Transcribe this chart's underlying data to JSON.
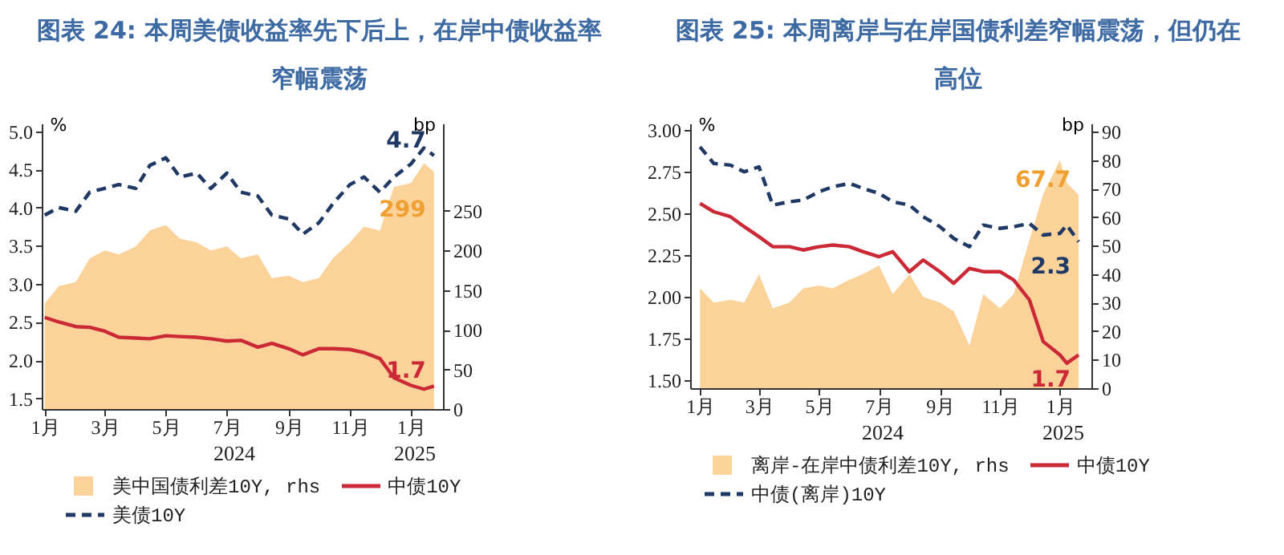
{
  "chart_data": [
    {
      "type": "line",
      "title": "图表 24: 本周美债收益率先下后上，在岸中债收益率窄幅震荡",
      "ylabel": "%",
      "y2label": "bp",
      "legend": "bottom",
      "x": [
        "2024-01-01",
        "2024-01-15",
        "2024-02-01",
        "2024-02-15",
        "2024-03-01",
        "2024-03-15",
        "2024-04-01",
        "2024-04-15",
        "2024-05-01",
        "2024-05-15",
        "2024-06-01",
        "2024-06-15",
        "2024-07-01",
        "2024-07-15",
        "2024-08-01",
        "2024-08-15",
        "2024-09-01",
        "2024-09-15",
        "2024-10-01",
        "2024-10-15",
        "2024-11-01",
        "2024-11-15",
        "2024-12-01",
        "2024-12-15",
        "2025-01-01",
        "2025-01-14",
        "2025-01-24"
      ],
      "xlim": [
        "2023-12-29",
        "2025-02-02"
      ],
      "xticks": [
        {
          "value": "2024-01-01",
          "label": "1月"
        },
        {
          "value": "2024-03-01",
          "label": "3月"
        },
        {
          "value": "2024-05-01",
          "label": "5月"
        },
        {
          "value": "2024-07-01",
          "label": "7月"
        },
        {
          "value": "2024-09-01",
          "label": "9月"
        },
        {
          "value": "2024-11-01",
          "label": "11月"
        },
        {
          "value": "2025-01-01",
          "label": "1月"
        }
      ],
      "annotations": [
        "2024",
        "2025"
      ],
      "ylim": [
        1.36,
        5.1
      ],
      "yticks": [
        {
          "value": 1.5,
          "label": "1.5"
        },
        {
          "value": 2,
          "label": "2.0"
        },
        {
          "value": 2.5,
          "label": "2.5"
        },
        {
          "value": 3,
          "label": "3.0"
        },
        {
          "value": 3.5,
          "label": "3.5"
        },
        {
          "value": 4,
          "label": "4.0"
        },
        {
          "value": 4.5,
          "label": "4.5"
        },
        {
          "value": 5,
          "label": "5.0"
        }
      ],
      "y2lim": [
        0,
        360
      ],
      "y2ticks": [
        0,
        50,
        100,
        150,
        200,
        250
      ],
      "series": [
        {
          "name": "美中国债利差10Y, rhs",
          "type": "area",
          "axis": "y2",
          "color": "#fad29a",
          "values": [
            133,
            155,
            160,
            190,
            200,
            195,
            205,
            225,
            232,
            215,
            210,
            200,
            205,
            190,
            195,
            165,
            168,
            160,
            165,
            190,
            210,
            230,
            225,
            280,
            285,
            310,
            299
          ],
          "value_labels": [
            null,
            null,
            null,
            null,
            null,
            null,
            null,
            null,
            null,
            null,
            null,
            null,
            null,
            null,
            null,
            null,
            null,
            null,
            null,
            null,
            null,
            null,
            null,
            null,
            null,
            null,
            "299"
          ]
        },
        {
          "name": "中债10Y",
          "color": "#cc2936",
          "line_style": "solid",
          "values": [
            2.56,
            2.5,
            2.44,
            2.43,
            2.38,
            2.3,
            2.29,
            2.28,
            2.32,
            2.31,
            2.3,
            2.28,
            2.25,
            2.26,
            2.17,
            2.22,
            2.15,
            2.07,
            2.15,
            2.15,
            2.14,
            2.1,
            2.02,
            1.77,
            1.67,
            1.62,
            1.66
          ],
          "value_labels": [
            null,
            null,
            null,
            null,
            null,
            null,
            null,
            null,
            null,
            null,
            null,
            null,
            null,
            null,
            null,
            null,
            null,
            null,
            null,
            null,
            null,
            null,
            null,
            null,
            null,
            null,
            "1.7"
          ]
        },
        {
          "name": "美债10Y",
          "color": "#1f3864",
          "line_style": "dashed",
          "values": [
            3.9,
            4.0,
            3.95,
            4.2,
            4.25,
            4.3,
            4.25,
            4.55,
            4.65,
            4.4,
            4.45,
            4.25,
            4.45,
            4.2,
            4.15,
            3.9,
            3.85,
            3.65,
            3.8,
            4.05,
            4.3,
            4.4,
            4.2,
            4.4,
            4.57,
            4.78,
            4.68
          ],
          "value_labels": [
            null,
            null,
            null,
            null,
            null,
            null,
            null,
            null,
            null,
            null,
            null,
            null,
            null,
            null,
            null,
            null,
            null,
            null,
            null,
            null,
            null,
            null,
            null,
            null,
            null,
            null,
            "4.7"
          ]
        }
      ]
    },
    {
      "type": "line",
      "title": "图表 25: 本周离岸与在岸国债利差窄幅震荡，但仍在高位",
      "ylabel": "%",
      "y2label": "bp",
      "legend": "bottom",
      "x": [
        "2024-01-01",
        "2024-01-15",
        "2024-02-01",
        "2024-02-15",
        "2024-03-01",
        "2024-03-15",
        "2024-04-01",
        "2024-04-15",
        "2024-05-01",
        "2024-05-15",
        "2024-06-01",
        "2024-06-15",
        "2024-07-01",
        "2024-07-15",
        "2024-08-01",
        "2024-08-15",
        "2024-09-01",
        "2024-09-15",
        "2024-10-01",
        "2024-10-15",
        "2024-11-01",
        "2024-11-15",
        "2024-12-01",
        "2024-12-15",
        "2025-01-01",
        "2025-01-08",
        "2025-01-20"
      ],
      "xlim": [
        "2023-12-22",
        "2025-02-02"
      ],
      "xticks": [
        {
          "value": "2024-01-01",
          "label": "1月"
        },
        {
          "value": "2024-03-01",
          "label": "3月"
        },
        {
          "value": "2024-05-01",
          "label": "5月"
        },
        {
          "value": "2024-07-01",
          "label": "7月"
        },
        {
          "value": "2024-09-01",
          "label": "9月"
        },
        {
          "value": "2024-11-01",
          "label": "11月"
        },
        {
          "value": "2025-01-01",
          "label": "1月"
        }
      ],
      "annotations": [
        "2024",
        "2025"
      ],
      "ylim": [
        1.45,
        3.04
      ],
      "yticks": [
        {
          "value": 1.5,
          "label": "1.50"
        },
        {
          "value": 1.75,
          "label": "1.75"
        },
        {
          "value": 2,
          "label": "2.00"
        },
        {
          "value": 2.25,
          "label": "2.25"
        },
        {
          "value": 2.5,
          "label": "2.50"
        },
        {
          "value": 2.75,
          "label": "2.75"
        },
        {
          "value": 3,
          "label": "3.00"
        }
      ],
      "y2lim": [
        0,
        92.8
      ],
      "y2ticks": [
        0,
        10,
        20,
        30,
        40,
        50,
        60,
        70,
        80,
        90
      ],
      "series": [
        {
          "name": "离岸-在岸中债利差10Y, rhs",
          "type": "area",
          "axis": "y2",
          "color": "#fad29a",
          "values": [
            35,
            30,
            31,
            30,
            40,
            28,
            30,
            35,
            36,
            35,
            38,
            40,
            43,
            33,
            40,
            32,
            30,
            27,
            15,
            33,
            28,
            33,
            52,
            68,
            80,
            72,
            67.7
          ],
          "value_labels": [
            null,
            null,
            null,
            null,
            null,
            null,
            null,
            null,
            null,
            null,
            null,
            null,
            null,
            null,
            null,
            null,
            null,
            null,
            null,
            null,
            null,
            null,
            null,
            null,
            null,
            null,
            "67.7"
          ]
        },
        {
          "name": "中债10Y",
          "color": "#cc2936",
          "line_style": "solid",
          "values": [
            2.56,
            2.51,
            2.48,
            2.42,
            2.36,
            2.3,
            2.3,
            2.28,
            2.3,
            2.31,
            2.3,
            2.27,
            2.24,
            2.27,
            2.15,
            2.22,
            2.15,
            2.08,
            2.17,
            2.15,
            2.15,
            2.1,
            1.98,
            1.73,
            1.65,
            1.6,
            1.65
          ],
          "value_labels": [
            null,
            null,
            null,
            null,
            null,
            null,
            null,
            null,
            null,
            null,
            null,
            null,
            null,
            null,
            null,
            null,
            null,
            null,
            null,
            null,
            null,
            null,
            null,
            null,
            null,
            null,
            "1.7"
          ]
        },
        {
          "name": "中债(离岸)10Y",
          "color": "#1f3864",
          "line_style": "dashed",
          "values": [
            2.9,
            2.8,
            2.79,
            2.75,
            2.78,
            2.55,
            2.57,
            2.58,
            2.63,
            2.66,
            2.68,
            2.65,
            2.62,
            2.57,
            2.55,
            2.48,
            2.42,
            2.35,
            2.3,
            2.43,
            2.41,
            2.42,
            2.44,
            2.37,
            2.38,
            2.43,
            2.33
          ],
          "value_labels": [
            null,
            null,
            null,
            null,
            null,
            null,
            null,
            null,
            null,
            null,
            null,
            null,
            null,
            null,
            null,
            null,
            null,
            null,
            null,
            null,
            null,
            null,
            null,
            null,
            null,
            null,
            "2.3"
          ]
        }
      ]
    }
  ]
}
